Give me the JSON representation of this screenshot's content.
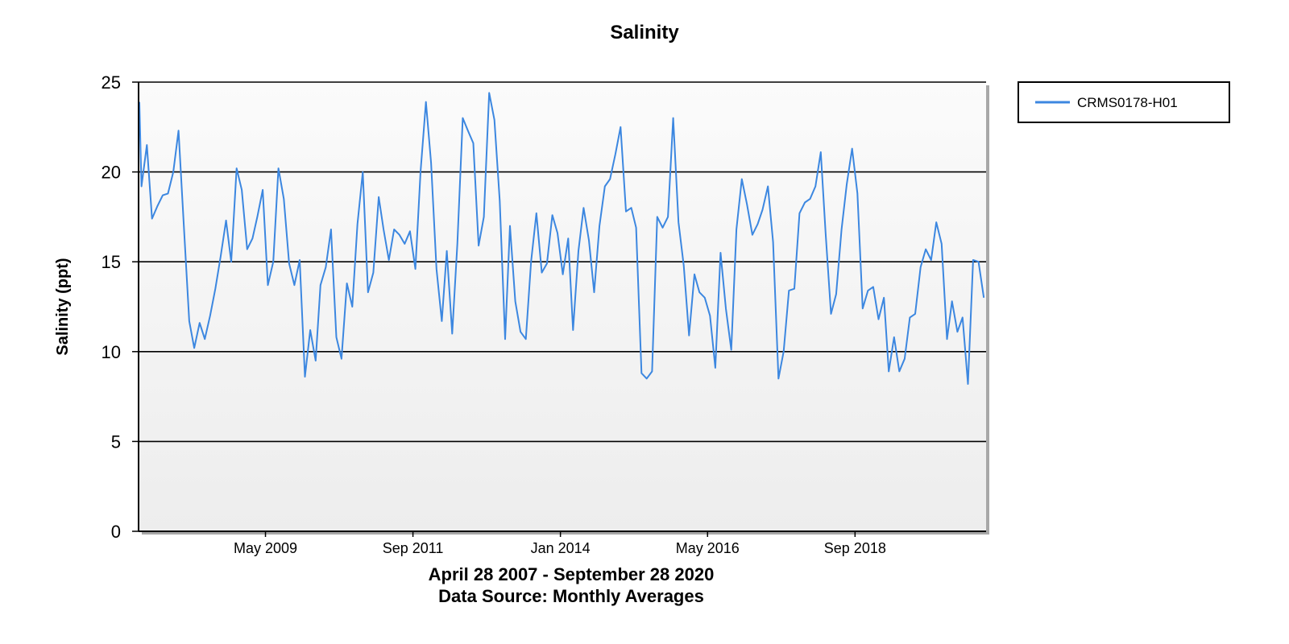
{
  "chart_data": {
    "type": "line",
    "title": "Salinity",
    "xlabel": "",
    "ylabel": "Salinity (ppt)",
    "subtitle_line1": "April 28 2007 - September 28 2020",
    "subtitle_line2": "Data Source: Monthly Averages",
    "x_start": "2007-04-28",
    "x_end": "2020-09-28",
    "ylim": [
      0,
      25
    ],
    "yticks": [
      0,
      5,
      10,
      15,
      20,
      25
    ],
    "xticks": [
      {
        "date": "2009-05-01",
        "label": "May 2009"
      },
      {
        "date": "2011-09-01",
        "label": "Sep 2011"
      },
      {
        "date": "2014-01-01",
        "label": "Jan 2014"
      },
      {
        "date": "2016-05-01",
        "label": "May 2016"
      },
      {
        "date": "2018-09-01",
        "label": "Sep 2018"
      }
    ],
    "grid": true,
    "legend_position": "top-right",
    "series": [
      {
        "name": "CRMS0178-H01",
        "color": "#3c87e0",
        "points": [
          [
            "2007-04",
            23.9
          ],
          [
            "2007-05",
            19.2
          ],
          [
            "2007-06",
            21.5
          ],
          [
            "2007-07",
            17.4
          ],
          [
            "2007-08",
            18.1
          ],
          [
            "2007-09",
            18.7
          ],
          [
            "2007-10",
            18.8
          ],
          [
            "2007-11",
            20.0
          ],
          [
            "2007-12",
            22.3
          ],
          [
            "2008-01",
            17.0
          ],
          [
            "2008-02",
            11.7
          ],
          [
            "2008-03",
            10.2
          ],
          [
            "2008-04",
            11.6
          ],
          [
            "2008-05",
            10.7
          ],
          [
            "2008-06",
            12.0
          ],
          [
            "2008-07",
            13.5
          ],
          [
            "2008-08",
            15.3
          ],
          [
            "2008-09",
            17.3
          ],
          [
            "2008-10",
            15.0
          ],
          [
            "2008-11",
            20.2
          ],
          [
            "2008-12",
            19.0
          ],
          [
            "2009-01",
            15.7
          ],
          [
            "2009-02",
            16.3
          ],
          [
            "2009-03",
            17.5
          ],
          [
            "2009-04",
            19.0
          ],
          [
            "2009-05",
            13.7
          ],
          [
            "2009-06",
            15.0
          ],
          [
            "2009-07",
            20.2
          ],
          [
            "2009-08",
            18.5
          ],
          [
            "2009-09",
            14.9
          ],
          [
            "2009-10",
            13.7
          ],
          [
            "2009-11",
            15.1
          ],
          [
            "2009-12",
            8.6
          ],
          [
            "2010-01",
            11.2
          ],
          [
            "2010-02",
            9.5
          ],
          [
            "2010-03",
            13.7
          ],
          [
            "2010-04",
            14.7
          ],
          [
            "2010-05",
            16.8
          ],
          [
            "2010-06",
            10.8
          ],
          [
            "2010-07",
            9.6
          ],
          [
            "2010-08",
            13.8
          ],
          [
            "2010-09",
            12.5
          ],
          [
            "2010-10",
            17.1
          ],
          [
            "2010-11",
            20.0
          ],
          [
            "2010-12",
            13.3
          ],
          [
            "2011-01",
            14.4
          ],
          [
            "2011-02",
            18.6
          ],
          [
            "2011-03",
            16.8
          ],
          [
            "2011-04",
            15.1
          ],
          [
            "2011-05",
            16.8
          ],
          [
            "2011-06",
            16.5
          ],
          [
            "2011-07",
            16.0
          ],
          [
            "2011-08",
            16.7
          ],
          [
            "2011-09",
            14.6
          ],
          [
            "2011-10",
            20.0
          ],
          [
            "2011-11",
            23.9
          ],
          [
            "2011-12",
            20.5
          ],
          [
            "2012-01",
            14.6
          ],
          [
            "2012-02",
            11.7
          ],
          [
            "2012-03",
            15.6
          ],
          [
            "2012-04",
            11.0
          ],
          [
            "2012-05",
            16.0
          ],
          [
            "2012-06",
            23.0
          ],
          [
            "2012-07",
            22.3
          ],
          [
            "2012-08",
            21.6
          ],
          [
            "2012-09",
            15.9
          ],
          [
            "2012-10",
            17.5
          ],
          [
            "2012-11",
            24.4
          ],
          [
            "2012-12",
            22.9
          ],
          [
            "2013-01",
            18.4
          ],
          [
            "2013-02",
            10.7
          ],
          [
            "2013-03",
            17.0
          ],
          [
            "2013-04",
            12.8
          ],
          [
            "2013-05",
            11.1
          ],
          [
            "2013-06",
            10.7
          ],
          [
            "2013-07",
            15.0
          ],
          [
            "2013-08",
            17.7
          ],
          [
            "2013-09",
            14.4
          ],
          [
            "2013-10",
            14.9
          ],
          [
            "2013-11",
            17.6
          ],
          [
            "2013-12",
            16.6
          ],
          [
            "2014-01",
            14.3
          ],
          [
            "2014-02",
            16.3
          ],
          [
            "2014-03",
            11.2
          ],
          [
            "2014-04",
            15.6
          ],
          [
            "2014-05",
            18.0
          ],
          [
            "2014-06",
            16.2
          ],
          [
            "2014-07",
            13.3
          ],
          [
            "2014-08",
            17.0
          ],
          [
            "2014-09",
            19.2
          ],
          [
            "2014-10",
            19.6
          ],
          [
            "2014-11",
            21.0
          ],
          [
            "2014-12",
            22.5
          ],
          [
            "2015-01",
            17.8
          ],
          [
            "2015-02",
            18.0
          ],
          [
            "2015-03",
            16.9
          ],
          [
            "2015-04",
            8.8
          ],
          [
            "2015-05",
            8.5
          ],
          [
            "2015-06",
            8.9
          ],
          [
            "2015-07",
            17.5
          ],
          [
            "2015-08",
            16.9
          ],
          [
            "2015-09",
            17.5
          ],
          [
            "2015-10",
            23.0
          ],
          [
            "2015-11",
            17.2
          ],
          [
            "2015-12",
            14.8
          ],
          [
            "2016-01",
            10.9
          ],
          [
            "2016-02",
            14.3
          ],
          [
            "2016-03",
            13.3
          ],
          [
            "2016-04",
            13.0
          ],
          [
            "2016-05",
            12.0
          ],
          [
            "2016-06",
            9.1
          ],
          [
            "2016-07",
            15.5
          ],
          [
            "2016-08",
            12.4
          ],
          [
            "2016-09",
            10.1
          ],
          [
            "2016-10",
            16.8
          ],
          [
            "2016-11",
            19.6
          ],
          [
            "2016-12",
            18.2
          ],
          [
            "2017-01",
            16.5
          ],
          [
            "2017-02",
            17.1
          ],
          [
            "2017-03",
            17.9
          ],
          [
            "2017-04",
            19.2
          ],
          [
            "2017-05",
            16.1
          ],
          [
            "2017-06",
            8.5
          ],
          [
            "2017-07",
            10.0
          ],
          [
            "2017-08",
            13.4
          ],
          [
            "2017-09",
            13.5
          ],
          [
            "2017-10",
            17.7
          ],
          [
            "2017-11",
            18.3
          ],
          [
            "2017-12",
            18.5
          ],
          [
            "2018-01",
            19.2
          ],
          [
            "2018-02",
            21.1
          ],
          [
            "2018-03",
            16.6
          ],
          [
            "2018-04",
            12.1
          ],
          [
            "2018-05",
            13.2
          ],
          [
            "2018-06",
            16.8
          ],
          [
            "2018-07",
            19.3
          ],
          [
            "2018-08",
            21.3
          ],
          [
            "2018-09",
            18.8
          ],
          [
            "2018-10",
            12.4
          ],
          [
            "2018-11",
            13.4
          ],
          [
            "2018-12",
            13.6
          ],
          [
            "2019-01",
            11.8
          ],
          [
            "2019-02",
            13.0
          ],
          [
            "2019-03",
            8.9
          ],
          [
            "2019-04",
            10.8
          ],
          [
            "2019-05",
            8.9
          ],
          [
            "2019-06",
            9.6
          ],
          [
            "2019-07",
            11.9
          ],
          [
            "2019-08",
            12.1
          ],
          [
            "2019-09",
            14.7
          ],
          [
            "2019-10",
            15.7
          ],
          [
            "2019-11",
            15.1
          ],
          [
            "2019-12",
            17.2
          ],
          [
            "2020-01",
            16.0
          ],
          [
            "2020-02",
            10.7
          ],
          [
            "2020-03",
            12.8
          ],
          [
            "2020-04",
            11.1
          ],
          [
            "2020-05",
            11.9
          ],
          [
            "2020-06",
            8.2
          ],
          [
            "2020-07",
            15.1
          ],
          [
            "2020-08",
            15.0
          ],
          [
            "2020-09",
            13.0
          ]
        ]
      }
    ]
  }
}
